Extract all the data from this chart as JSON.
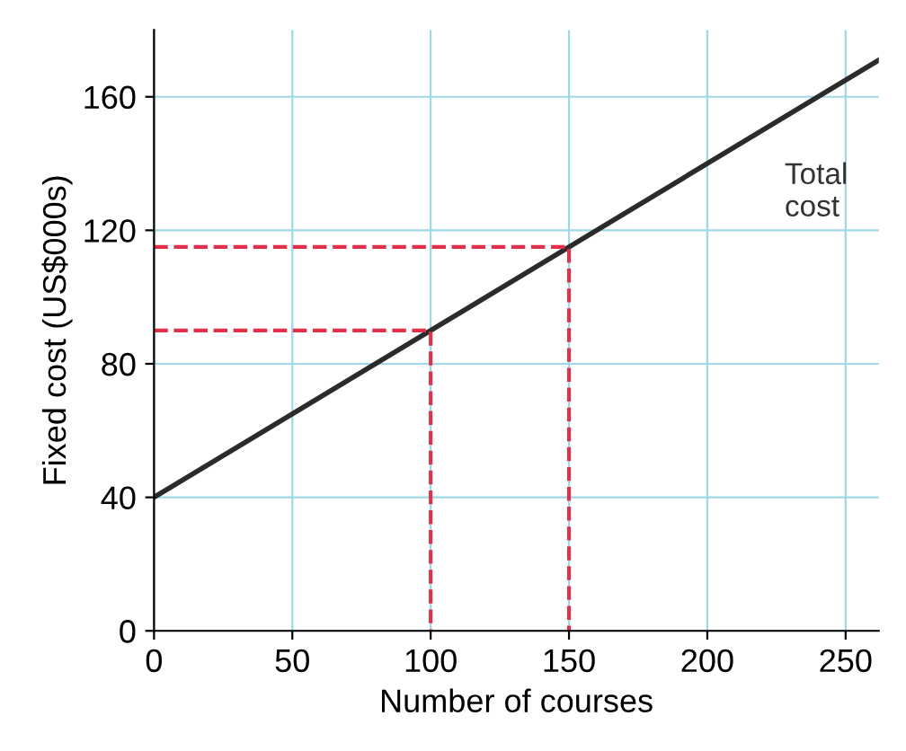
{
  "chart_data": {
    "type": "line",
    "xlabel": "Number of courses",
    "ylabel": "Fixed cost (US$000s)",
    "xlim": [
      0,
      262
    ],
    "ylim": [
      0,
      180
    ],
    "xticks": [
      0,
      50,
      100,
      150,
      200,
      250
    ],
    "yticks": [
      0,
      40,
      80,
      120,
      160
    ],
    "grid": true,
    "series": [
      {
        "color": "#2b2b2b",
        "x": [
          0,
          262
        ],
        "values": [
          40,
          171
        ],
        "line_style": "solid"
      },
      {
        "color": "#e0304a",
        "x": [
          0,
          100,
          100
        ],
        "values": [
          90,
          90,
          0
        ],
        "line_style": "dashed"
      },
      {
        "color": "#e0304a",
        "x": [
          0,
          150,
          150
        ],
        "values": [
          115,
          115,
          0
        ],
        "line_style": "dashed"
      }
    ],
    "annotations": [
      "Total\ncost"
    ]
  }
}
